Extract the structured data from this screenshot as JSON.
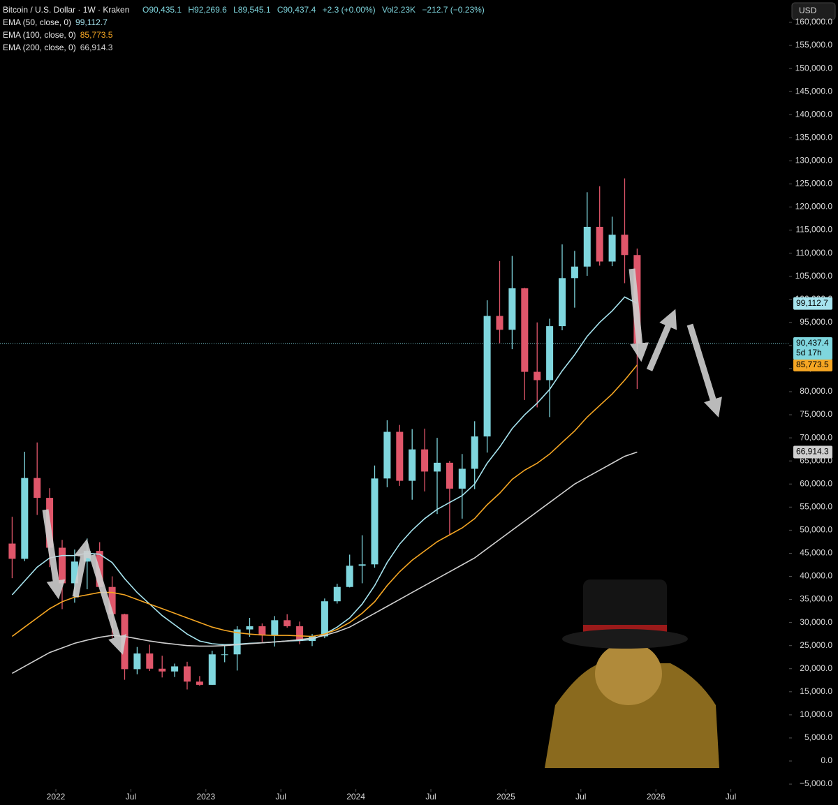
{
  "chart_data": {
    "type": "candlestick",
    "header": {
      "symbol": "Bitcoin / U.S. Dollar · 1W · Kraken",
      "open": "O90,435.1",
      "high": "H92,269.6",
      "low": "L89,545.1",
      "close": "C90,437.4",
      "change": "+2.3 (+0.00%)",
      "volume": "Vol2.23K",
      "volume_change": "−212.7 (−0.23%)"
    },
    "currency": "USD",
    "x": [
      "2021-09",
      "2021-10",
      "2021-11",
      "2021-12",
      "2022-01",
      "2022-02",
      "2022-03",
      "2022-04",
      "2022-05",
      "2022-06",
      "2022-07",
      "2022-08",
      "2022-09",
      "2022-10",
      "2022-11",
      "2022-12",
      "2023-01",
      "2023-02",
      "2023-03",
      "2023-04",
      "2023-05",
      "2023-06",
      "2023-07",
      "2023-08",
      "2023-09",
      "2023-10",
      "2023-11",
      "2023-12",
      "2024-01",
      "2024-02",
      "2024-03",
      "2024-04",
      "2024-05",
      "2024-06",
      "2024-07",
      "2024-08",
      "2024-09",
      "2024-10",
      "2024-11",
      "2024-12",
      "2025-01",
      "2025-02",
      "2025-03",
      "2025-04",
      "2025-05",
      "2025-06",
      "2025-07",
      "2025-08",
      "2025-09",
      "2025-10",
      "2025-11"
    ],
    "open": [
      47100,
      43800,
      61300,
      57000,
      46200,
      38500,
      43200,
      45500,
      37700,
      31800,
      19900,
      23300,
      20000,
      19400,
      20500,
      17200,
      16500,
      23100,
      23100,
      28500,
      29200,
      27200,
      30500,
      29200,
      26000,
      27000,
      34600,
      37700,
      42300,
      42600,
      61200,
      71300,
      60700,
      67500,
      62700,
      64600,
      59000,
      63300,
      70300,
      96400,
      93400,
      102400,
      84300,
      82500,
      94200,
      104600,
      107100,
      115700,
      108200,
      114000,
      109600
    ],
    "high": [
      52900,
      67000,
      69000,
      59100,
      47900,
      45800,
      48200,
      47400,
      40000,
      31900,
      24700,
      25200,
      22800,
      21100,
      21500,
      18400,
      23900,
      25200,
      29200,
      31000,
      29800,
      31400,
      31800,
      30200,
      27500,
      35200,
      38400,
      44700,
      48900,
      64000,
      73800,
      72800,
      71900,
      72000,
      70000,
      65000,
      66500,
      73600,
      99800,
      108300,
      109400,
      102500,
      95000,
      95800,
      111900,
      110500,
      123200,
      124500,
      117900,
      126200,
      111000
    ],
    "low": [
      39600,
      43300,
      53300,
      42000,
      32900,
      34300,
      37200,
      37700,
      26700,
      17600,
      18800,
      19500,
      18100,
      18200,
      15500,
      16300,
      16500,
      21400,
      19600,
      26900,
      25800,
      24800,
      28900,
      25300,
      24900,
      26600,
      34100,
      37600,
      38500,
      41900,
      59300,
      59600,
      56600,
      58400,
      53500,
      49000,
      52500,
      58900,
      66800,
      90500,
      89200,
      78200,
      76600,
      74500,
      93300,
      98200,
      105100,
      107300,
      107200,
      103500,
      80600
    ],
    "close": [
      43800,
      61300,
      57000,
      46200,
      38500,
      43200,
      45500,
      37700,
      31800,
      19900,
      23300,
      20000,
      19400,
      20500,
      17200,
      16500,
      23100,
      23100,
      28500,
      29200,
      27200,
      30500,
      29200,
      26000,
      27000,
      34600,
      37700,
      42300,
      42600,
      61200,
      71300,
      60700,
      67500,
      62700,
      64600,
      59000,
      63300,
      70300,
      96400,
      93400,
      102400,
      84300,
      82500,
      94200,
      104600,
      107100,
      115700,
      108200,
      114000,
      109600,
      90400
    ],
    "up_color": "#7fd6de",
    "down_color": "#e0566a",
    "series": [
      {
        "name": "EMA (50, close, 0)",
        "color": "#a6e3ee",
        "last_label": "99,112.7",
        "values": [
          36000,
          39000,
          42000,
          44000,
          44500,
          44500,
          45000,
          44800,
          43000,
          39500,
          36500,
          34000,
          31500,
          29500,
          27500,
          26000,
          25400,
          25200,
          25300,
          25500,
          25600,
          25800,
          26000,
          26100,
          26300,
          27500,
          29000,
          31000,
          34000,
          38000,
          43000,
          47000,
          50000,
          52500,
          54500,
          56000,
          57500,
          60000,
          64500,
          68000,
          72000,
          75000,
          77500,
          80500,
          84500,
          88000,
          92000,
          95000,
          97500,
          100500,
          99112.7
        ]
      },
      {
        "name": "EMA (100, close, 0)",
        "color": "#f5a623",
        "last_label": "85,773.5",
        "values": [
          27000,
          29000,
          31000,
          33000,
          34500,
          35500,
          36000,
          36500,
          36500,
          36000,
          35000,
          34000,
          33000,
          32000,
          31000,
          30000,
          29000,
          28300,
          27800,
          27500,
          27300,
          27200,
          27200,
          27100,
          27000,
          27500,
          28500,
          30000,
          32000,
          34500,
          38000,
          41000,
          43500,
          45500,
          47500,
          49000,
          50500,
          52500,
          55500,
          58000,
          61000,
          63000,
          64500,
          66500,
          69000,
          71500,
          74500,
          77000,
          79500,
          82500,
          85773.5
        ]
      },
      {
        "name": "EMA (200, close, 0)",
        "color": "#cfcfcf",
        "last_label": "66,914.3",
        "values": [
          19000,
          20500,
          22000,
          23500,
          24500,
          25500,
          26200,
          26800,
          27200,
          27000,
          26500,
          26000,
          25600,
          25300,
          25000,
          24900,
          24900,
          25000,
          25200,
          25400,
          25600,
          25800,
          26000,
          26300,
          26600,
          27200,
          28000,
          29000,
          30500,
          32000,
          33500,
          35000,
          36500,
          38000,
          39500,
          41000,
          42500,
          44000,
          46000,
          48000,
          50000,
          52000,
          54000,
          56000,
          58000,
          60000,
          61500,
          63000,
          64500,
          66000,
          66914.3
        ]
      }
    ],
    "price_badge": {
      "value": 90437.4,
      "label": "90,437.4",
      "countdown": "5d 17h"
    },
    "ylim": [
      -9000,
      165000
    ],
    "yticks": [
      {
        "value": -5000,
        "label": "−5,000.0"
      },
      {
        "value": 0,
        "label": "0.0"
      },
      {
        "value": 5000,
        "label": "5,000.0"
      },
      {
        "value": 10000,
        "label": "10,000.0"
      },
      {
        "value": 15000,
        "label": "15,000.0"
      },
      {
        "value": 20000,
        "label": "20,000.0"
      },
      {
        "value": 25000,
        "label": "25,000.0"
      },
      {
        "value": 30000,
        "label": "30,000.0"
      },
      {
        "value": 35000,
        "label": "35,000.0"
      },
      {
        "value": 40000,
        "label": "40,000.0"
      },
      {
        "value": 45000,
        "label": "45,000.0"
      },
      {
        "value": 50000,
        "label": "50,000.0"
      },
      {
        "value": 55000,
        "label": "55,000.0"
      },
      {
        "value": 60000,
        "label": "60,000.0"
      },
      {
        "value": 65000,
        "label": "65,000.0"
      },
      {
        "value": 70000,
        "label": "70,000.0"
      },
      {
        "value": 75000,
        "label": "75,000.0"
      },
      {
        "value": 80000,
        "label": "80,000.0"
      },
      {
        "value": 85000,
        "label": "85,000.0"
      },
      {
        "value": 90000,
        "label": "90,000.0"
      },
      {
        "value": 95000,
        "label": "95,000.0"
      },
      {
        "value": 100000,
        "label": "100,000.0"
      },
      {
        "value": 105000,
        "label": "105,000.0"
      },
      {
        "value": 110000,
        "label": "110,000.0"
      },
      {
        "value": 115000,
        "label": "115,000.0"
      },
      {
        "value": 120000,
        "label": "120,000.0"
      },
      {
        "value": 125000,
        "label": "125,000.0"
      },
      {
        "value": 130000,
        "label": "130,000.0"
      },
      {
        "value": 135000,
        "label": "135,000.0"
      },
      {
        "value": 140000,
        "label": "140,000.0"
      },
      {
        "value": 145000,
        "label": "145,000.0"
      },
      {
        "value": 150000,
        "label": "150,000.0"
      },
      {
        "value": 155000,
        "label": "155,000.0"
      },
      {
        "value": 160000,
        "label": "160,000.0"
      }
    ],
    "xticks": [
      {
        "value": "2022-01",
        "label": "2022"
      },
      {
        "value": "2022-07",
        "label": "Jul"
      },
      {
        "value": "2023-01",
        "label": "2023"
      },
      {
        "value": "2023-07",
        "label": "Jul"
      },
      {
        "value": "2024-01",
        "label": "2024"
      },
      {
        "value": "2024-07",
        "label": "Jul"
      },
      {
        "value": "2025-01",
        "label": "2025"
      },
      {
        "value": "2025-07",
        "label": "Jul"
      },
      {
        "value": "2026-01",
        "label": "2026"
      },
      {
        "value": "2026-07",
        "label": "Jul"
      }
    ]
  }
}
